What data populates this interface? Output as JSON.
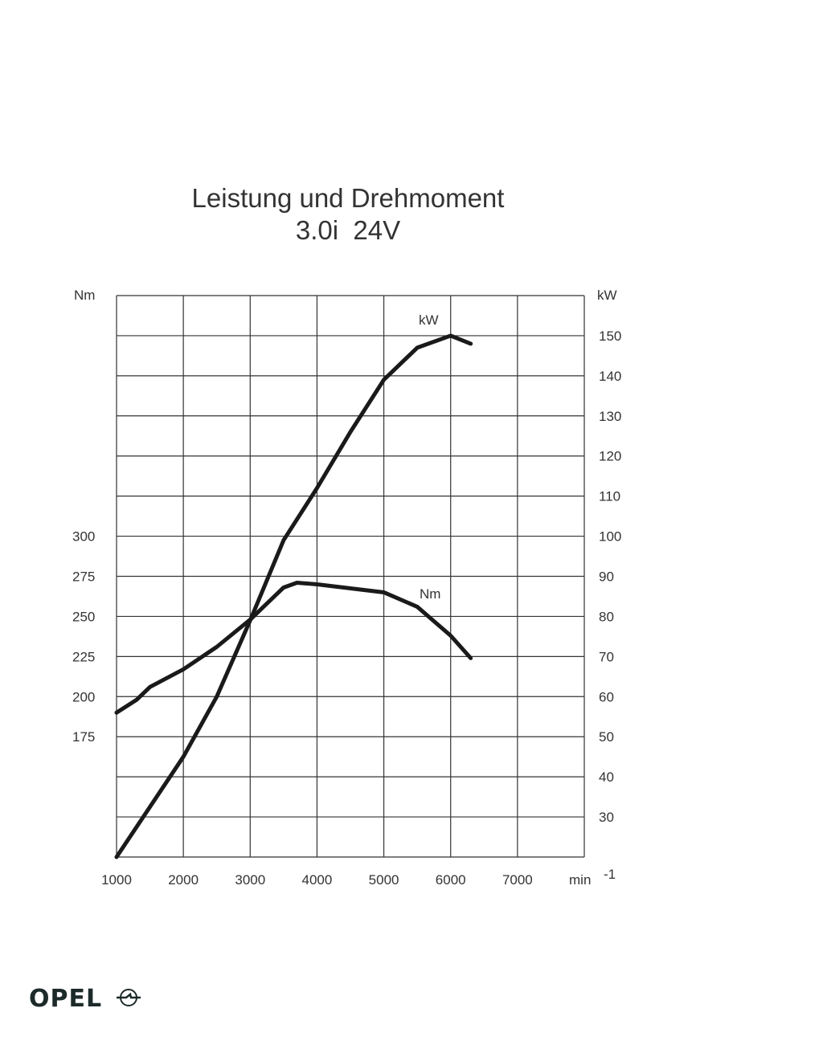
{
  "chart_data": {
    "type": "line",
    "title": "Leistung und Drehmoment",
    "subtitle": "3.0i  24V",
    "xlabel": "min -1",
    "ylabel_left": "Nm",
    "ylabel_right": "kW",
    "xlim": [
      1000,
      8000
    ],
    "ylim_left": [
      100,
      450
    ],
    "ylim_right": [
      20,
      160
    ],
    "x_ticks": [
      "1000",
      "2000",
      "3000",
      "4000",
      "5000",
      "6000",
      "7000"
    ],
    "left_ticks": [
      "175",
      "200",
      "225",
      "250",
      "275",
      "300"
    ],
    "right_ticks": [
      "30",
      "40",
      "50",
      "60",
      "70",
      "80",
      "90",
      "100",
      "110",
      "120",
      "130",
      "140",
      "150"
    ],
    "grid": true,
    "series": [
      {
        "name": "kW",
        "axis": "right",
        "x": [
          1000,
          2000,
          2500,
          3000,
          3500,
          4000,
          4500,
          5000,
          5500,
          6000,
          6300
        ],
        "values": [
          20,
          45,
          60,
          79,
          99,
          112,
          126,
          139,
          147,
          150,
          148
        ]
      },
      {
        "name": "Nm",
        "axis": "left",
        "x": [
          1000,
          1300,
          1500,
          2000,
          2500,
          3000,
          3500,
          3700,
          4000,
          5000,
          5500,
          6000,
          6300
        ],
        "values": [
          190,
          198,
          206,
          217,
          231,
          248,
          268,
          271,
          270,
          265,
          256,
          238,
          224
        ]
      }
    ]
  },
  "brand": "OPEL"
}
